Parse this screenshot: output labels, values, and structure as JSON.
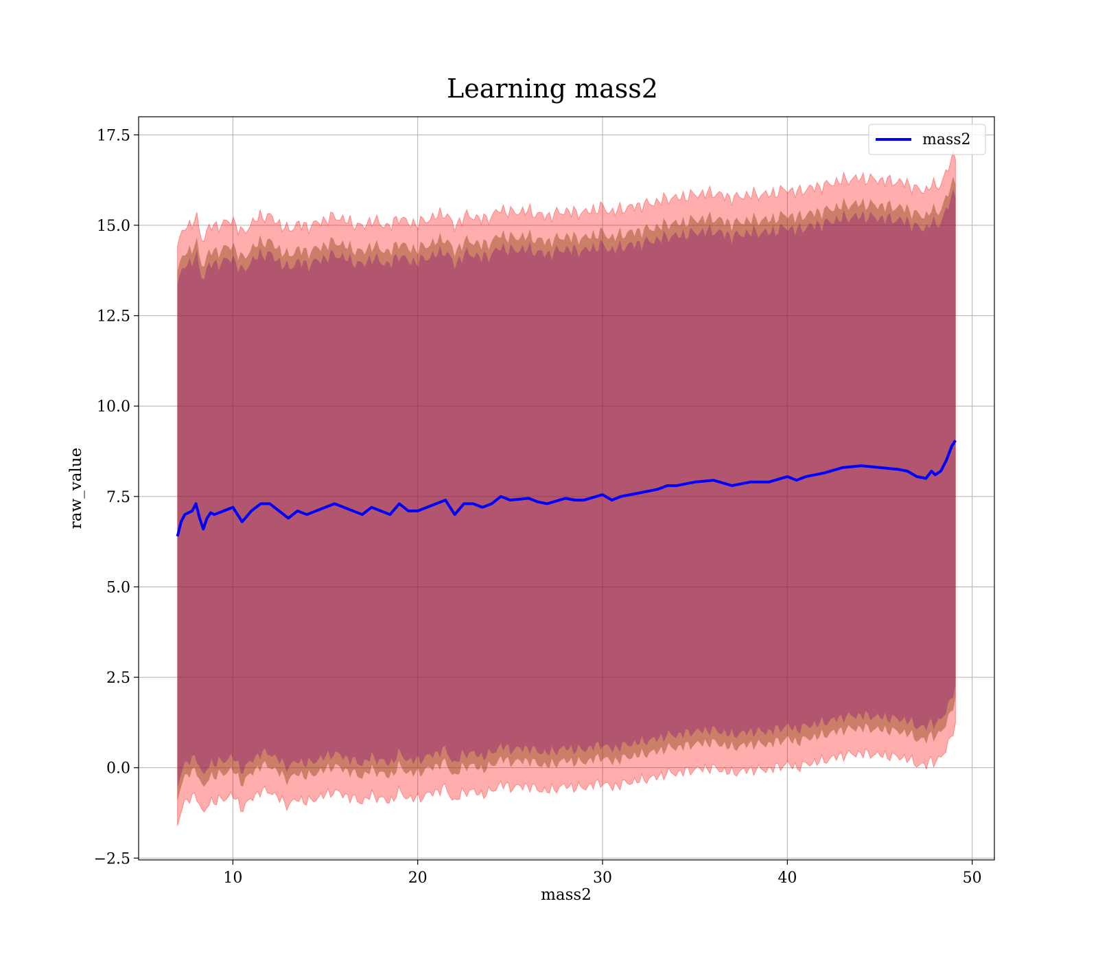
{
  "chart_data": {
    "type": "line",
    "title": "Learning mass2",
    "xlabel": "mass2",
    "ylabel": "raw_value",
    "xlim": [
      4.9,
      51.2
    ],
    "ylim": [
      -2.55,
      18.0
    ],
    "xticks": [
      10,
      20,
      30,
      40,
      50
    ],
    "yticks": [
      -2.5,
      0.0,
      2.5,
      5.0,
      7.5,
      10.0,
      12.5,
      15.0,
      17.5
    ],
    "grid": true,
    "legend": {
      "position": "top-right",
      "entries": [
        "mass2"
      ]
    },
    "colors": {
      "line": "#0000ff",
      "band_outer": "#ff0000",
      "band_middle": "#8b4513",
      "band_inner": "#800080",
      "grid": "#b0b0b0"
    },
    "series": [
      {
        "name": "mass2",
        "x": [
          7.0,
          7.2,
          7.4,
          7.6,
          7.8,
          8.0,
          8.2,
          8.4,
          8.6,
          8.8,
          9.0,
          9.5,
          10.0,
          10.5,
          11.0,
          11.5,
          12.0,
          12.5,
          13.0,
          13.5,
          14.0,
          15.0,
          15.5,
          16.0,
          17.0,
          17.5,
          18.0,
          18.5,
          19.0,
          19.5,
          20.0,
          21.0,
          21.5,
          22.0,
          22.5,
          23.0,
          23.5,
          24.0,
          24.5,
          25.0,
          26.0,
          26.5,
          27.0,
          28.0,
          28.5,
          29.0,
          30.0,
          30.5,
          31.0,
          32.0,
          33.0,
          33.5,
          34.0,
          35.0,
          36.0,
          37.0,
          37.5,
          38.0,
          39.0,
          40.0,
          40.5,
          41.0,
          42.0,
          43.0,
          44.0,
          45.0,
          46.0,
          46.5,
          47.0,
          47.5,
          47.8,
          48.0,
          48.3,
          48.6,
          48.9,
          49.1
        ],
        "values": [
          6.4,
          6.8,
          7.0,
          7.05,
          7.1,
          7.3,
          6.9,
          6.6,
          6.9,
          7.05,
          7.0,
          7.1,
          7.2,
          6.8,
          7.1,
          7.3,
          7.3,
          7.1,
          6.9,
          7.1,
          7.0,
          7.2,
          7.3,
          7.2,
          7.0,
          7.2,
          7.1,
          7.0,
          7.3,
          7.1,
          7.1,
          7.3,
          7.4,
          7.0,
          7.3,
          7.3,
          7.2,
          7.3,
          7.5,
          7.4,
          7.45,
          7.35,
          7.3,
          7.45,
          7.4,
          7.4,
          7.55,
          7.4,
          7.5,
          7.6,
          7.7,
          7.8,
          7.8,
          7.9,
          7.95,
          7.8,
          7.85,
          7.9,
          7.9,
          8.05,
          7.95,
          8.05,
          8.15,
          8.3,
          8.35,
          8.3,
          8.25,
          8.2,
          8.05,
          8.0,
          8.2,
          8.1,
          8.2,
          8.5,
          8.9,
          9.05
        ]
      }
    ]
  }
}
